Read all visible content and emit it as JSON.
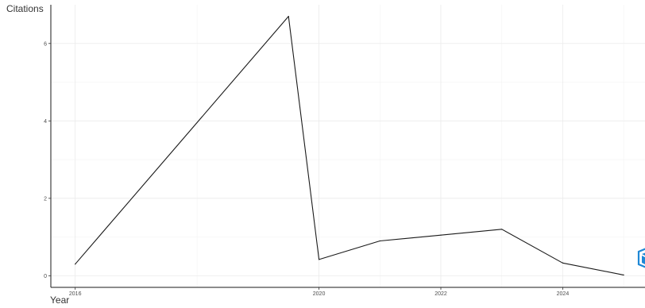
{
  "chart_data": {
    "type": "line",
    "xlabel": "Year",
    "ylabel": "Citations",
    "x": [
      2016,
      2019.5,
      2020,
      2021,
      2022,
      2023,
      2024,
      2025
    ],
    "y": [
      0.3,
      6.7,
      0.42,
      0.9,
      1.05,
      1.2,
      0.33,
      0.02
    ],
    "xlim": [
      2015.6,
      2025.35
    ],
    "ylim": [
      -0.3,
      7.0
    ],
    "xticks": [
      2016,
      2020,
      2022,
      2024
    ],
    "xtick_labels": [
      "2016",
      "2020",
      "2022",
      "2024"
    ],
    "yticks": [
      0,
      2,
      4,
      6
    ],
    "ytick_labels": [
      "0",
      "2",
      "4",
      "6"
    ],
    "grid": true,
    "line_color": "#1a1a1a"
  }
}
